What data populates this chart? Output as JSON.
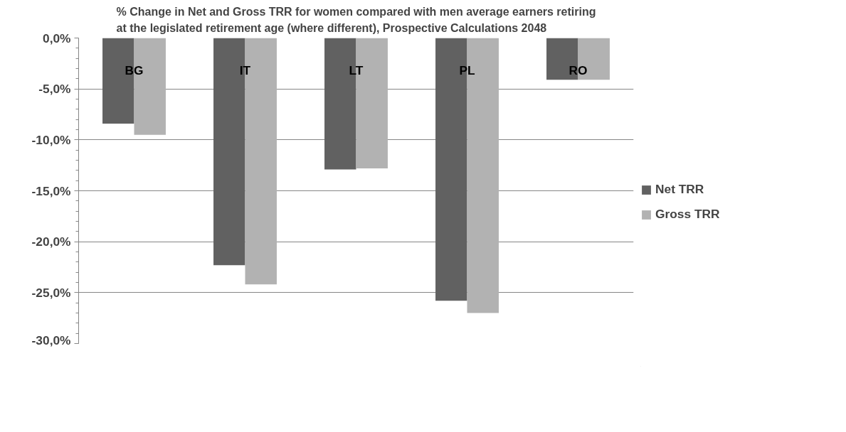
{
  "chart_data": {
    "type": "bar",
    "title": "% Change in Net and Gross TRR for women compared with men average earners retiring\nat the legislated retirement age (where different), Prospective Calculations 2048",
    "categories": [
      "BG",
      "IT",
      "LT",
      "PL",
      "RO"
    ],
    "series": [
      {
        "name": "Net TRR",
        "color": "#616161",
        "values": [
          -8.4,
          -22.3,
          -12.9,
          -25.8,
          -4.1
        ]
      },
      {
        "name": "Gross TRR",
        "color": "#b2b2b2",
        "values": [
          -9.5,
          -24.2,
          -12.8,
          -27.0,
          -4.1
        ]
      }
    ],
    "ylim": [
      -30,
      0
    ],
    "yticks": [
      {
        "value": 0,
        "label": "0,0%"
      },
      {
        "value": -5,
        "label": "-5,0%"
      },
      {
        "value": -10,
        "label": "-10,0%"
      },
      {
        "value": -15,
        "label": "-15,0%"
      },
      {
        "value": -20,
        "label": "-20,0%"
      },
      {
        "value": -25,
        "label": "-25,0%"
      },
      {
        "value": -30,
        "label": "-30,0%"
      }
    ],
    "grid": "y",
    "legend": "right"
  }
}
